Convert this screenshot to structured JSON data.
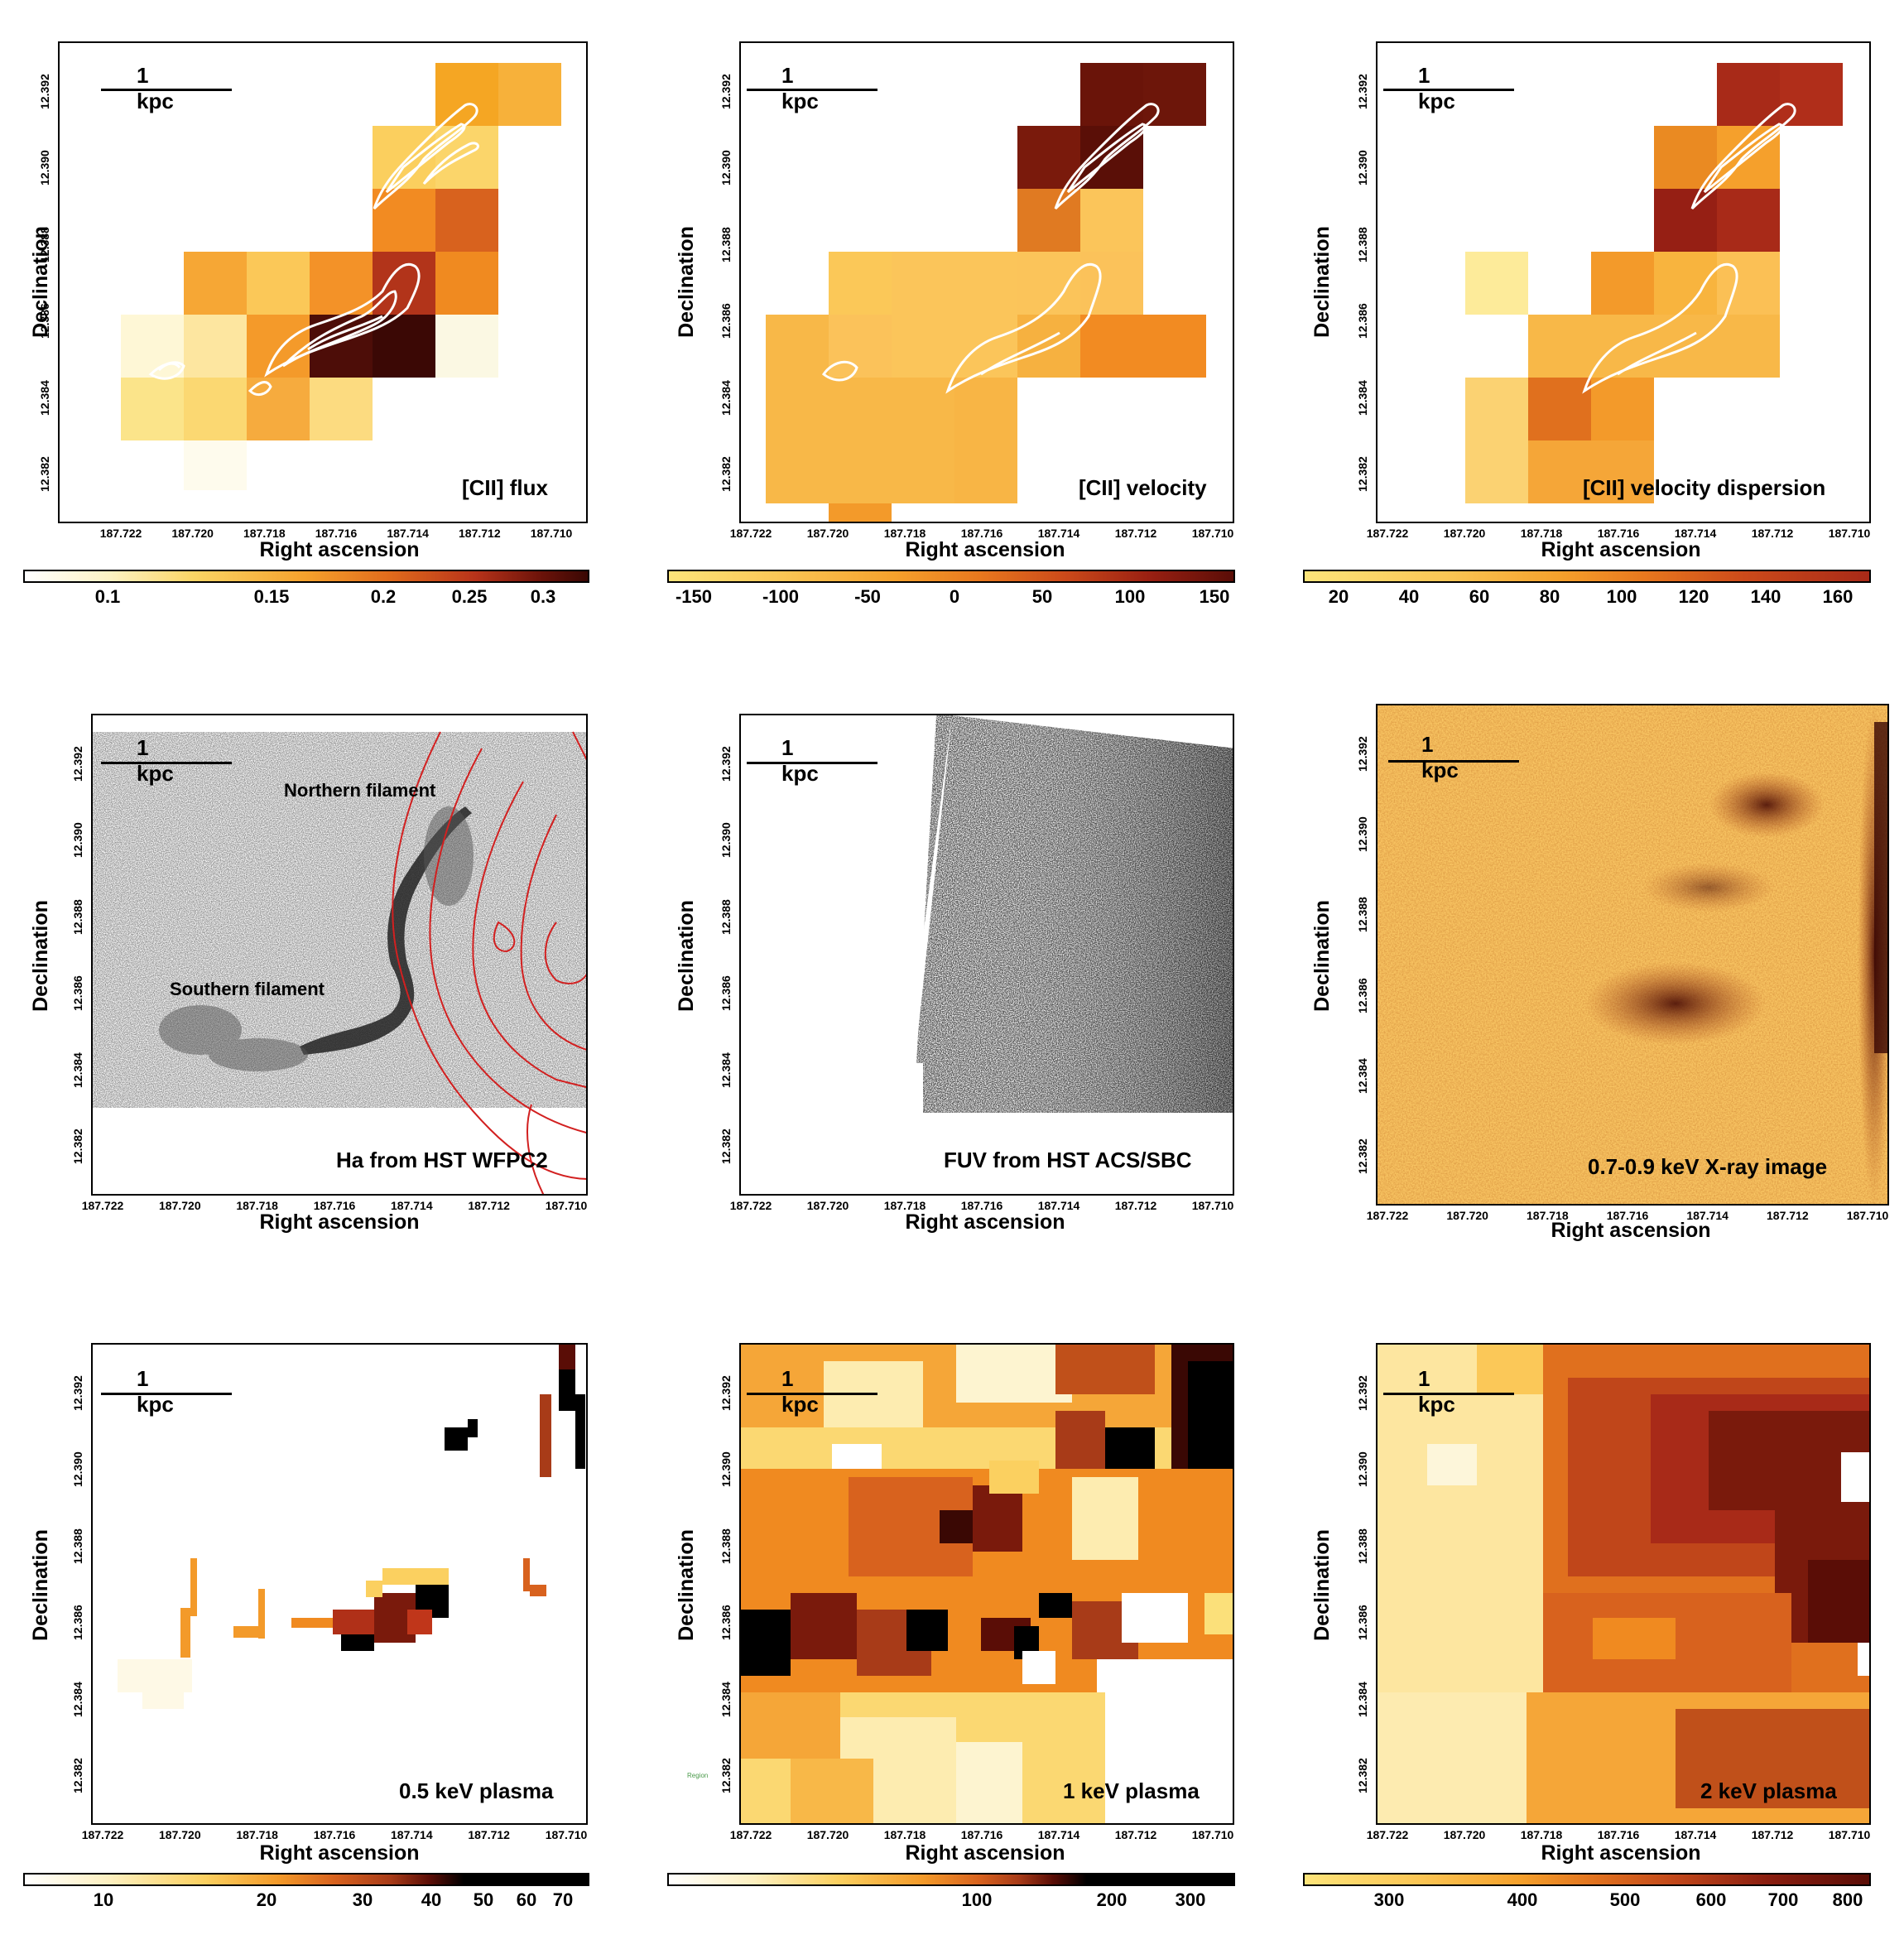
{
  "common": {
    "scale_label": "1 kpc",
    "x_axis_label": "Right ascension",
    "y_axis_label": "Declination",
    "x_ticks": [
      "187.722",
      "187.720",
      "187.718",
      "187.716",
      "187.714",
      "187.712",
      "187.710"
    ],
    "y_ticks": [
      "12.392",
      "12.390",
      "12.388",
      "12.386",
      "12.384",
      "12.382"
    ]
  },
  "panels": [
    {
      "id": "cii-flux",
      "label": "[CII] flux",
      "colorbar_ticks": [
        "0.1",
        "0.15",
        "0.2",
        "0.25",
        "0.3"
      ],
      "colormap": "white-yellow-orange-darkred"
    },
    {
      "id": "cii-velocity",
      "label": "[CII] velocity",
      "colorbar_ticks": [
        "-150",
        "-100",
        "-50",
        "0",
        "50",
        "100",
        "150"
      ],
      "colormap": "yellow-orange-darkred"
    },
    {
      "id": "cii-dispersion",
      "label": "[CII] velocity dispersion",
      "colorbar_ticks": [
        "20",
        "40",
        "60",
        "80",
        "100",
        "120",
        "140",
        "160"
      ],
      "colormap": "yellow-orange-red"
    },
    {
      "id": "ha-wfpc2",
      "label": "Ha from HST WFPC2",
      "annotations": [
        "Northern filament",
        "Southern filament"
      ],
      "colormap": "greyscale"
    },
    {
      "id": "fuv-acs",
      "label": "FUV from HST ACS/SBC",
      "colormap": "greyscale"
    },
    {
      "id": "xray",
      "label": "0.7-0.9 keV X-ray image",
      "colormap": "yellow-orange-darkred"
    },
    {
      "id": "plasma-05",
      "label": "0.5 keV plasma",
      "colorbar_ticks": [
        "10",
        "20",
        "30",
        "40",
        "50",
        "60",
        "70"
      ],
      "colormap": "white-orange-black"
    },
    {
      "id": "plasma-1",
      "label": "1 keV plasma",
      "colorbar_ticks": [
        "100",
        "200",
        "300"
      ],
      "small_note": "Region",
      "colormap": "white-orange-black"
    },
    {
      "id": "plasma-2",
      "label": "2 keV plasma",
      "colorbar_ticks": [
        "300",
        "400",
        "500",
        "600",
        "700",
        "800"
      ],
      "colormap": "yellow-orange-darkred"
    }
  ],
  "colors": {
    "contour_white": "#ffffff",
    "contour_red": "#d22020",
    "hot_dark": "#3a0a05",
    "hot_mid": "#e07a20",
    "hot_light": "#fbe07a"
  }
}
